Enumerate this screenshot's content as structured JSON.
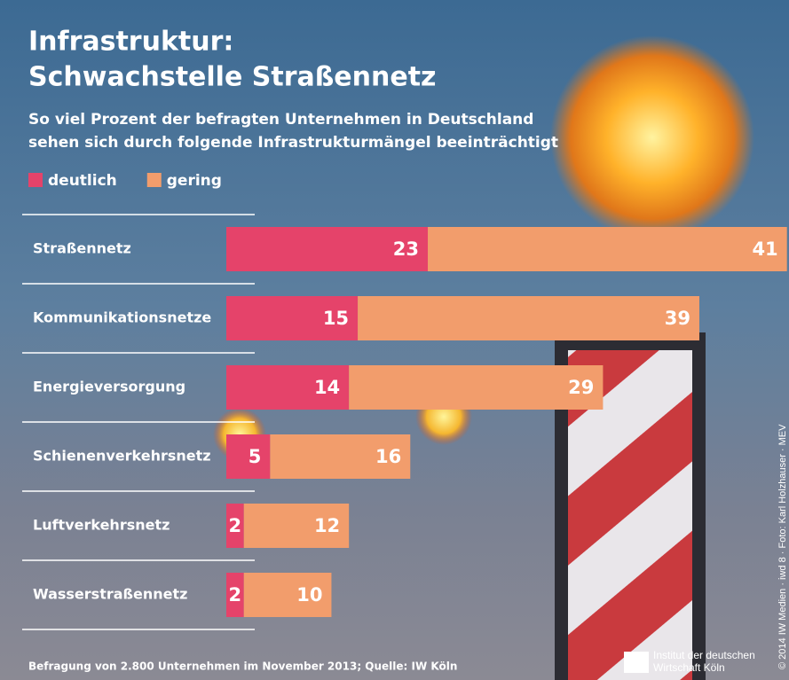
{
  "chart_data": {
    "type": "bar",
    "orientation": "horizontal",
    "stacked": true,
    "title": [
      "Infrastruktur:",
      "Schwachstelle Straßennetz"
    ],
    "subtitle": [
      "So viel Prozent der befragten Unternehmen in Deutschland",
      "sehen sich durch folgende Infrastrukturmängel beeinträchtigt"
    ],
    "categories": [
      "Straßennetz",
      "Kommunikationsnetze",
      "Energieversorgung",
      "Schienenverkehrsnetz",
      "Luftverkehrsnetz",
      "Wasserstraßennetz"
    ],
    "series": [
      {
        "name": "deutlich",
        "color": "#e5436a",
        "values": [
          23,
          15,
          14,
          5,
          2,
          2
        ]
      },
      {
        "name": "gering",
        "color": "#f29d6c",
        "values": [
          41,
          39,
          29,
          16,
          12,
          10
        ]
      }
    ],
    "source": "Befragung von 2.800 Unternehmen im November 2013; Quelle: IW Köln",
    "publisher": [
      "Institut der deutschen",
      "Wirtschaft Köln"
    ],
    "credit": "© 2014 IW Medien · iwd 8 · Foto: Karl Holzhauser · MEV"
  }
}
